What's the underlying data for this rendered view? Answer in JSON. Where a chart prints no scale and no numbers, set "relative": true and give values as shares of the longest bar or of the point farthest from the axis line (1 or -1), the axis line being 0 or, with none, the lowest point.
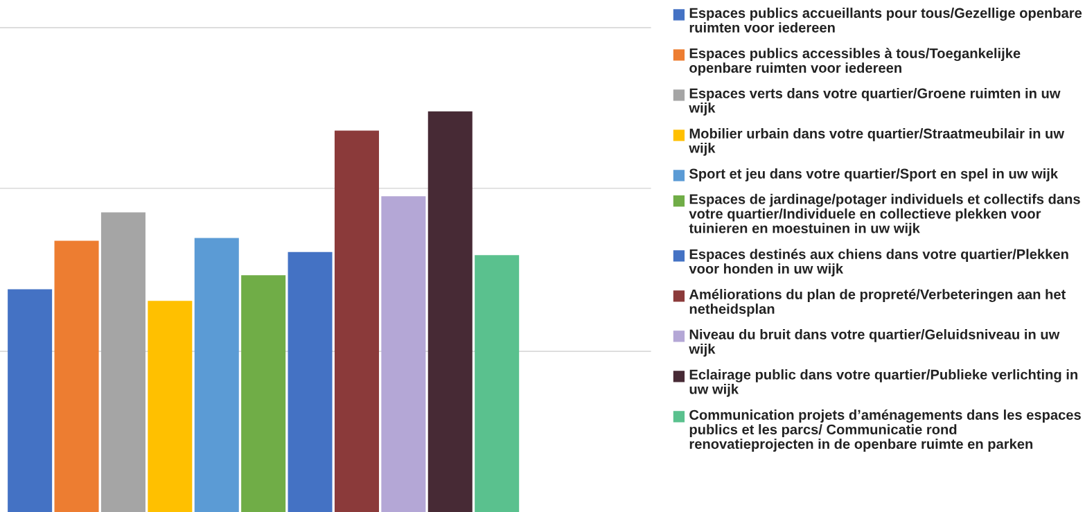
{
  "chart_data": {
    "type": "bar",
    "relative": true,
    "legend": "right",
    "categories": [
      null
    ],
    "ref_lines": [
      {
        "axis": "y",
        "value": 0.401,
        "color": "#d9d9d9"
      },
      {
        "axis": "y",
        "value": 0.808,
        "color": "#d9d9d9"
      },
      {
        "axis": "y",
        "value": 1.209,
        "color": "#d9d9d9"
      }
    ],
    "series": [
      {
        "name": "Espaces publics accueillants pour tous/Gezellige openbare ruimten voor iedereen",
        "color": "#4472c4",
        "values": [
          0.556
        ]
      },
      {
        "name": "Espaces publics accessibles à tous/Toegankelijke openbare ruimten voor iedereen",
        "color": "#ed7d31",
        "values": [
          0.677
        ]
      },
      {
        "name": "Espaces verts dans votre quartier/Groene ruimten in uw wijk",
        "color": "#a5a5a5",
        "values": [
          0.748
        ]
      },
      {
        "name": "Mobilier urbain dans votre quartier/Straatmeubilair in uw wijk",
        "color": "#ffc000",
        "values": [
          0.527
        ]
      },
      {
        "name": "Sport et jeu dans votre quartier/Sport en spel in uw wijk",
        "color": "#5b9bd5",
        "values": [
          0.684
        ]
      },
      {
        "name": "Espaces de jardinage/potager individuels et collectifs dans votre quartier/Individuele en collectieve plekken voor tuinieren en moestuinen in uw wijk",
        "color": "#70ad47",
        "values": [
          0.591
        ]
      },
      {
        "name": "Espaces destinés aux chiens dans votre quartier/Plekken voor honden in uw wijk",
        "color": "#4472c4",
        "values": [
          0.649
        ]
      },
      {
        "name": "Améliorations du plan de propreté/Verbeteringen aan het netheidsplan",
        "color": "#8b3a3a",
        "values": [
          0.952
        ]
      },
      {
        "name": "Niveau du bruit dans votre quartier/Geluidsniveau in uw wijk",
        "color": "#b4a7d6",
        "values": [
          0.788
        ]
      },
      {
        "name": "Eclairage public dans votre quartier/Publieke verlichting in uw wijk",
        "color": "#472a35",
        "values": [
          1
        ]
      },
      {
        "name": "Communication projets d’aménagements dans les espaces publics et les parcs/ Communicatie rond renovatieprojecten in de openbare ruimte en parken",
        "color": "#5ac18e",
        "values": [
          0.641
        ]
      }
    ]
  }
}
